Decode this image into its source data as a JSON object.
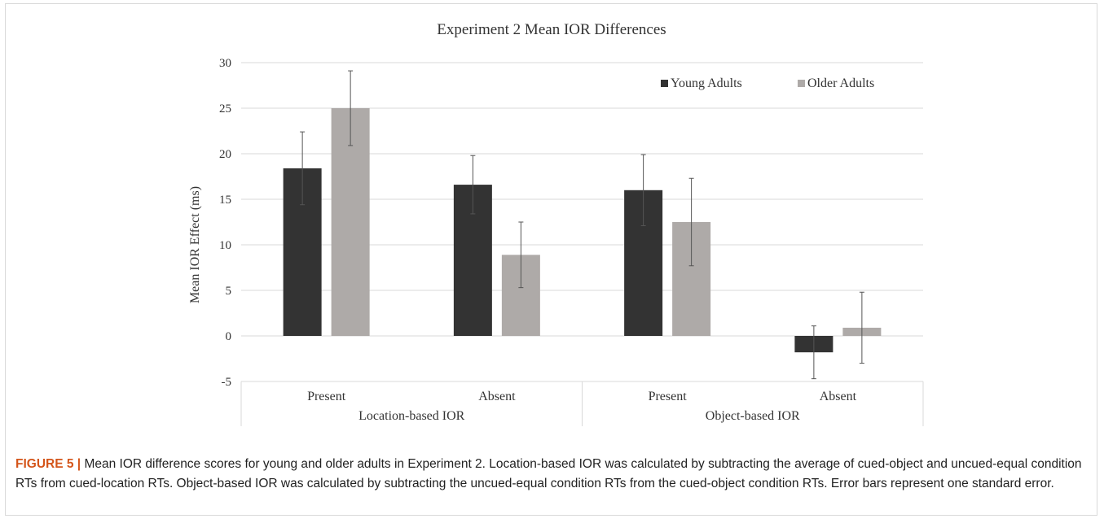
{
  "figure": {
    "caption_label": "FIGURE 5 |",
    "caption_text": " Mean IOR difference scores for young and older adults in Experiment 2. Location-based IOR was calculated by subtracting the average of cued-object and uncued-equal condition RTs from cued-location RTs. Object-based IOR was calculated by subtracting the uncued-equal condition RTs from the cued-object condition RTs. Error bars represent one standard error."
  },
  "chart_data": {
    "type": "bar",
    "title": "Experiment 2 Mean IOR Differences",
    "ylabel": "Mean IOR Effect (ms)",
    "xlabel": "",
    "ylim": [
      -5,
      30
    ],
    "yticks": [
      -5,
      0,
      5,
      10,
      15,
      20,
      25,
      30
    ],
    "grid": true,
    "legend_position": "top-right",
    "categories": [
      "Present",
      "Absent",
      "Present",
      "Absent"
    ],
    "groups": [
      {
        "label": "Location-based IOR",
        "categories": [
          "Present",
          "Absent"
        ]
      },
      {
        "label": "Object-based IOR",
        "categories": [
          "Present",
          "Absent"
        ]
      }
    ],
    "series": [
      {
        "name": "Young Adults",
        "color": "#333333",
        "values": [
          18.4,
          16.6,
          16.0,
          -1.8
        ],
        "errors": [
          4.0,
          3.2,
          3.9,
          2.9
        ]
      },
      {
        "name": "Older Adults",
        "color": "#aeaaa8",
        "values": [
          25.0,
          8.9,
          12.5,
          0.9
        ],
        "errors": [
          4.1,
          3.6,
          4.8,
          3.9
        ]
      }
    ]
  }
}
